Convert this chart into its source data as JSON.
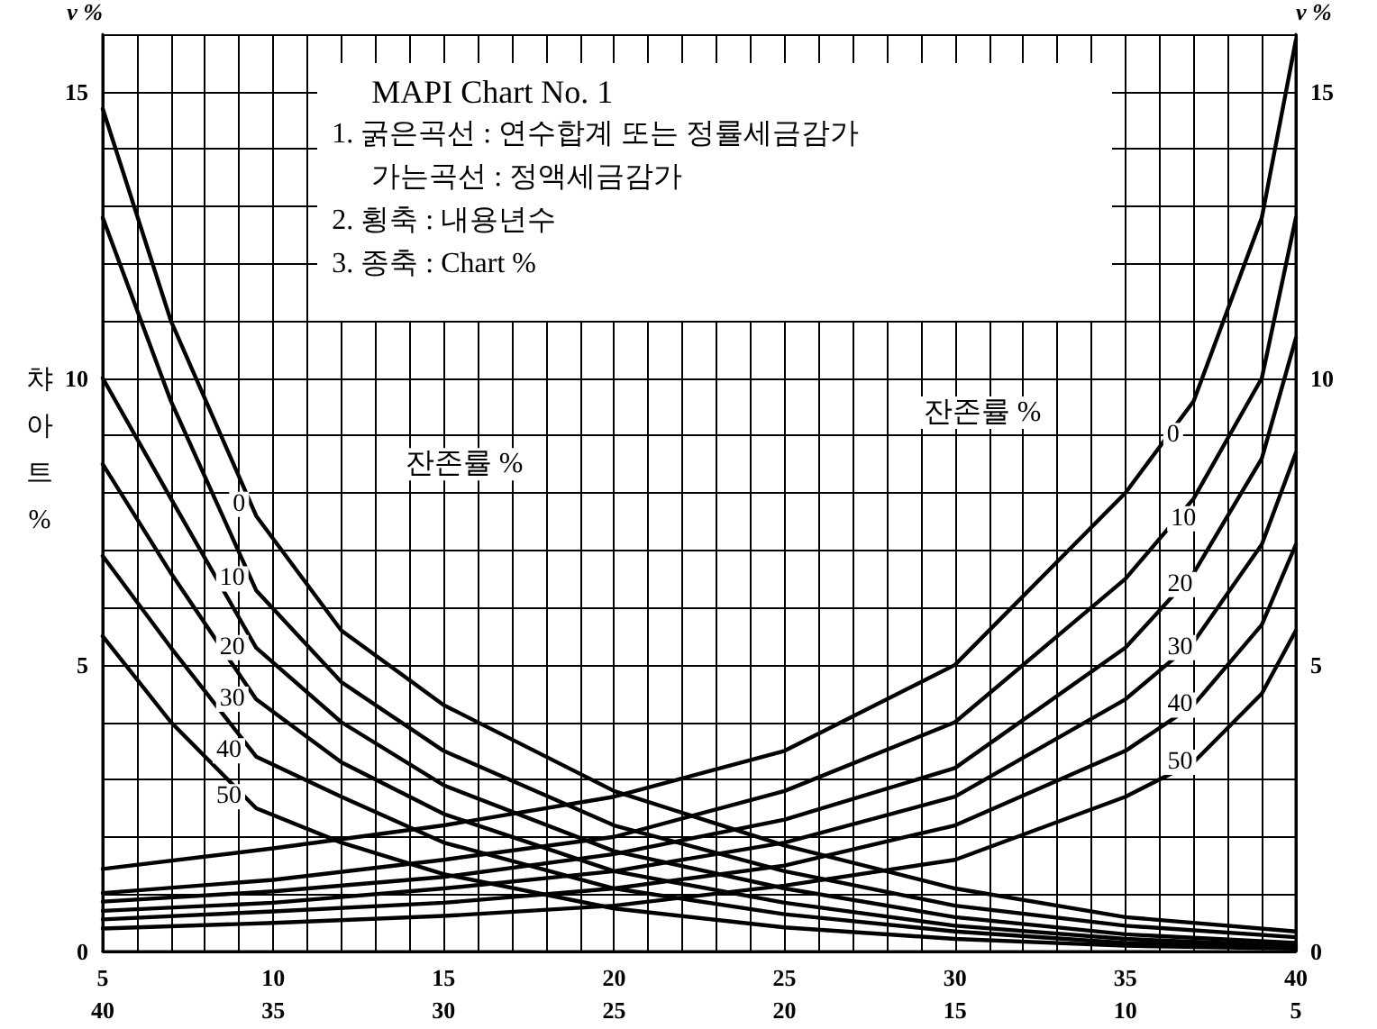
{
  "chart_data": {
    "type": "line",
    "title": "MAPI Chart No. 1",
    "ylabel": "챠아트 %",
    "y2label": "v %",
    "annotations": [
      "1. 굵은곡선 : 연수합계 또는 정률세금감가",
      "가는곡선 : 정액세금감가",
      "2. 횡축 : 내용년수",
      "3. 종축 : Chart %",
      "잔존률 %",
      "잔존률 %",
      {
        "text": "0",
        "x": 9.0,
        "y": 7.8
      },
      {
        "text": "10",
        "x": 8.8,
        "y": 6.5
      },
      {
        "text": "20",
        "x": 8.8,
        "y": 5.3
      },
      {
        "text": "30",
        "x": 8.8,
        "y": 4.4
      },
      {
        "text": "40",
        "x": 8.7,
        "y": 3.5
      },
      {
        "text": "50",
        "x": 8.7,
        "y": 2.7
      },
      {
        "text": "0",
        "x": 36.4,
        "y": 9.0
      },
      {
        "text": "10",
        "x": 36.7,
        "y": 7.55
      },
      {
        "text": "20",
        "x": 36.6,
        "y": 6.4
      },
      {
        "text": "30",
        "x": 36.6,
        "y": 5.3
      },
      {
        "text": "40",
        "x": 36.6,
        "y": 4.3
      },
      {
        "text": "50",
        "x": 36.6,
        "y": 3.3
      }
    ],
    "series": [
      {
        "color": "#000000",
        "x": [
          5,
          7,
          9.5,
          12,
          15,
          20,
          25,
          30,
          35,
          40
        ],
        "values": [
          14.7,
          11.0,
          7.6,
          5.6,
          4.3,
          2.8,
          1.85,
          1.1,
          0.6,
          0.35
        ]
      },
      {
        "color": "#000000",
        "x": [
          5,
          7,
          9.5,
          12,
          15,
          20,
          25,
          30,
          35,
          40
        ],
        "values": [
          12.8,
          9.6,
          6.3,
          4.7,
          3.5,
          2.2,
          1.4,
          0.8,
          0.45,
          0.25
        ]
      },
      {
        "color": "#000000",
        "x": [
          5,
          7,
          9.5,
          12,
          15,
          20,
          25,
          30,
          35,
          40
        ],
        "values": [
          10.0,
          7.9,
          5.3,
          4.0,
          2.9,
          1.75,
          1.1,
          0.6,
          0.3,
          0.15
        ]
      },
      {
        "color": "#000000",
        "x": [
          5,
          7,
          9.5,
          12,
          15,
          20,
          25,
          30,
          35,
          40
        ],
        "values": [
          8.5,
          6.6,
          4.4,
          3.3,
          2.4,
          1.4,
          0.85,
          0.45,
          0.22,
          0.1
        ]
      },
      {
        "color": "#000000",
        "x": [
          5,
          7,
          9.5,
          12,
          15,
          20,
          25,
          30,
          35,
          40
        ],
        "values": [
          6.9,
          5.3,
          3.4,
          2.7,
          1.9,
          1.1,
          0.65,
          0.35,
          0.15,
          0.07
        ]
      },
      {
        "color": "#000000",
        "x": [
          5,
          7,
          9.5,
          12,
          15,
          20,
          25,
          30,
          35,
          40
        ],
        "values": [
          5.5,
          4.0,
          2.5,
          1.9,
          1.35,
          0.75,
          0.42,
          0.22,
          0.1,
          0.05
        ]
      },
      {
        "color": "#000000",
        "x": [
          5,
          10,
          15,
          20,
          25,
          30,
          35,
          37,
          39,
          40
        ],
        "values": [
          1.44,
          1.8,
          2.2,
          2.7,
          3.5,
          5.0,
          8.0,
          9.6,
          12.8,
          15.9
        ]
      },
      {
        "color": "#000000",
        "x": [
          5,
          10,
          15,
          20,
          25,
          30,
          35,
          37,
          39,
          40
        ],
        "values": [
          1.02,
          1.25,
          1.6,
          2.0,
          2.8,
          4.0,
          6.5,
          7.9,
          10.0,
          12.8
        ]
      },
      {
        "color": "#000000",
        "x": [
          5,
          10,
          15,
          20,
          25,
          30,
          35,
          37,
          39,
          40
        ],
        "values": [
          0.87,
          1.05,
          1.3,
          1.7,
          2.3,
          3.2,
          5.3,
          6.6,
          8.6,
          10.7
        ]
      },
      {
        "color": "#000000",
        "x": [
          5,
          10,
          15,
          20,
          25,
          30,
          35,
          37,
          39,
          40
        ],
        "values": [
          0.71,
          0.85,
          1.1,
          1.4,
          1.9,
          2.7,
          4.4,
          5.4,
          7.1,
          8.7
        ]
      },
      {
        "color": "#000000",
        "x": [
          5,
          10,
          15,
          20,
          25,
          30,
          35,
          37,
          39,
          40
        ],
        "values": [
          0.56,
          0.7,
          0.85,
          1.1,
          1.5,
          2.2,
          3.5,
          4.3,
          5.7,
          7.1
        ]
      },
      {
        "color": "#000000",
        "x": [
          5,
          10,
          15,
          20,
          25,
          30,
          35,
          37,
          39,
          40
        ],
        "values": [
          0.4,
          0.5,
          0.62,
          0.8,
          1.15,
          1.6,
          2.7,
          3.3,
          4.5,
          5.6
        ]
      }
    ],
    "xlim": [
      5,
      40
    ],
    "xticks": [
      5,
      {
        "value": 6,
        "label": null
      },
      {
        "value": 7,
        "label": null
      },
      {
        "value": 8,
        "label": null
      },
      {
        "value": 9,
        "label": null
      },
      10,
      {
        "value": 11,
        "label": null
      },
      {
        "value": 12,
        "label": null
      },
      {
        "value": 13,
        "label": null
      },
      {
        "value": 14,
        "label": null
      },
      15,
      {
        "value": 16,
        "label": null
      },
      {
        "value": 17,
        "label": null
      },
      {
        "value": 18,
        "label": null
      },
      {
        "value": 19,
        "label": null
      },
      20,
      {
        "value": 21,
        "label": null
      },
      {
        "value": 22,
        "label": null
      },
      {
        "value": 23,
        "label": null
      },
      {
        "value": 24,
        "label": null
      },
      25,
      {
        "value": 26,
        "label": null
      },
      {
        "value": 27,
        "label": null
      },
      {
        "value": 28,
        "label": null
      },
      {
        "value": 29,
        "label": null
      },
      30,
      {
        "value": 31,
        "label": null
      },
      {
        "value": 32,
        "label": null
      },
      {
        "value": 33,
        "label": null
      },
      {
        "value": 34,
        "label": null
      },
      35,
      {
        "value": 36,
        "label": null
      },
      {
        "value": 37,
        "label": null
      },
      {
        "value": 38,
        "label": null
      },
      {
        "value": 39,
        "label": null
      },
      40
    ],
    "x2lim": [
      40,
      5
    ],
    "x2ticks": [
      40,
      35,
      30,
      25,
      20,
      15,
      10,
      5
    ],
    "ylim": [
      0,
      16
    ],
    "yticks": [
      0,
      {
        "value": 1,
        "label": null
      },
      {
        "value": 2,
        "label": null
      },
      {
        "value": 3,
        "label": null
      },
      {
        "value": 4,
        "label": null
      },
      5,
      {
        "value": 6,
        "label": null
      },
      {
        "value": 7,
        "label": null
      },
      {
        "value": 8,
        "label": null
      },
      {
        "value": 9,
        "label": null
      },
      10,
      {
        "value": 11,
        "label": null
      },
      {
        "value": 12,
        "label": null
      },
      {
        "value": 13,
        "label": null
      },
      {
        "value": 14,
        "label": null
      },
      15,
      {
        "value": 16,
        "label": null
      }
    ],
    "y2lim": [
      0,
      16
    ],
    "y2ticks": [
      0,
      5,
      10,
      15
    ],
    "grid": true,
    "marker": "none",
    "line_style": "solid"
  }
}
